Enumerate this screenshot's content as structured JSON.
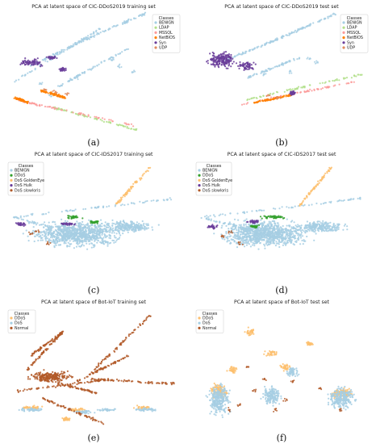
{
  "colors": {
    "light_blue": "#a6cee3",
    "light_green": "#b2df8a",
    "pink": "#fb9a99",
    "orange": "#fdbf6f",
    "dark_orange": "#ff7f00",
    "green": "#33a02c",
    "purple": "#6a3d9a",
    "peach": "#fdbf6f",
    "brown": "#b15928"
  },
  "chart_data": [
    {
      "type": "scatter",
      "label": "(a)",
      "title": "PCA at latent space of CIC-DDoS2019 training set",
      "legend": {
        "title": "Classes",
        "placement": "top-right",
        "entries": [
          {
            "name": "BENIGN",
            "color": "#a6cee3"
          },
          {
            "name": "LDAP",
            "color": "#b2df8a"
          },
          {
            "name": "MSSQL",
            "color": "#fb9a99"
          },
          {
            "name": "NetBIOS",
            "color": "#ff7f00"
          },
          {
            "name": "Syn",
            "color": "#6a3d9a"
          },
          {
            "name": "UDP",
            "color": "#e08a5e"
          }
        ]
      },
      "xlim": [
        0,
        100
      ],
      "ylim": [
        0,
        100
      ],
      "grid": false,
      "series": [
        {
          "name": "BENIGN",
          "color": "#a6cee3",
          "segments": [
            [
              [
                14,
                55
              ],
              [
                46,
                78
              ]
            ],
            [
              [
                46,
                78
              ],
              [
                80,
                100
              ]
            ],
            [
              [
                5,
                42
              ],
              [
                55,
                88
              ]
            ],
            [
              [
                30,
                38
              ],
              [
                70,
                70
              ]
            ]
          ],
          "scatter": [
            [
              60,
              60
            ],
            [
              65,
              55
            ],
            [
              72,
              50
            ],
            [
              20,
              40
            ],
            [
              25,
              30
            ],
            [
              40,
              45
            ]
          ]
        },
        {
          "name": "LDAP",
          "color": "#b2df8a",
          "segments": [
            [
              [
                26,
                20
              ],
              [
                76,
                0
              ]
            ]
          ]
        },
        {
          "name": "MSSQL",
          "color": "#fb9a99",
          "segments": [
            [
              [
                6,
                26
              ],
              [
                74,
                4
              ]
            ]
          ]
        },
        {
          "name": "NetBIOS",
          "color": "#ff7f00",
          "segments": [
            [
              [
                5,
                28
              ],
              [
                12,
                24
              ]
            ],
            [
              [
                20,
                34
              ],
              [
                34,
                28
              ]
            ]
          ]
        },
        {
          "name": "Syn",
          "color": "#6a3d9a",
          "blobs": [
            [
              14,
              58,
              9,
              4
            ],
            [
              26,
              62,
              4,
              2
            ],
            [
              32,
              52,
              3,
              2
            ]
          ]
        },
        {
          "name": "UDP",
          "color": "#e08a5e",
          "scatter": [
            [
              22,
              35
            ],
            [
              28,
              33
            ],
            [
              35,
              31
            ]
          ]
        }
      ]
    },
    {
      "type": "scatter",
      "label": "(b)",
      "title": "PCA at latent space of CIC-DDoS2019 test set",
      "legend": {
        "title": "Classes",
        "placement": "top-right",
        "entries": [
          {
            "name": "BENIGN",
            "color": "#a6cee3"
          },
          {
            "name": "LDAP",
            "color": "#b2df8a"
          },
          {
            "name": "MSSQL",
            "color": "#fb9a99"
          },
          {
            "name": "NetBIOS",
            "color": "#ff7f00"
          },
          {
            "name": "Syn",
            "color": "#6a3d9a"
          },
          {
            "name": "UDP",
            "color": "#e08a5e"
          }
        ]
      },
      "xlim": [
        0,
        100
      ],
      "ylim": [
        0,
        100
      ],
      "grid": false,
      "series": [
        {
          "name": "BENIGN",
          "color": "#a6cee3",
          "segments": [
            [
              [
                18,
                60
              ],
              [
                48,
                78
              ]
            ],
            [
              [
                48,
                78
              ],
              [
                82,
                100
              ]
            ],
            [
              [
                30,
                45
              ],
              [
                60,
                62
              ]
            ]
          ],
          "scatter": [
            [
              66,
              62
            ],
            [
              70,
              58
            ],
            [
              55,
              50
            ],
            [
              40,
              48
            ]
          ]
        },
        {
          "name": "LDAP",
          "color": "#b2df8a",
          "segments": [
            [
              [
                28,
                26
              ],
              [
                96,
                48
              ]
            ]
          ]
        },
        {
          "name": "MSSQL",
          "color": "#fb9a99",
          "segments": [
            [
              [
                26,
                22
              ],
              [
                92,
                42
              ]
            ]
          ]
        },
        {
          "name": "NetBIOS",
          "color": "#ff7f00",
          "segments": [
            [
              [
                34,
                24
              ],
              [
                55,
                30
              ]
            ]
          ]
        },
        {
          "name": "Syn",
          "color": "#6a3d9a",
          "blobs": [
            [
              16,
              60,
              10,
              9
            ],
            [
              30,
              55,
              6,
              5
            ],
            [
              56,
              32,
              3,
              3
            ]
          ]
        },
        {
          "name": "UDP",
          "color": "#e08a5e",
          "scatter": [
            [
              42,
              30
            ],
            [
              48,
              28
            ]
          ]
        }
      ]
    },
    {
      "type": "scatter",
      "label": "(c)",
      "title": "PCA at latent space of CIC-IDS2017 training set",
      "legend": {
        "title": "Classes",
        "placement": "top-left",
        "entries": [
          {
            "name": "BENIGN",
            "color": "#a6cee3"
          },
          {
            "name": "DDoS",
            "color": "#33a02c"
          },
          {
            "name": "DoS GoldenEye",
            "color": "#fdbf6f"
          },
          {
            "name": "DoS Hulk",
            "color": "#6a3d9a"
          },
          {
            "name": "DoS slowloris",
            "color": "#b15928"
          }
        ]
      },
      "xlim": [
        0,
        100
      ],
      "ylim": [
        0,
        100
      ],
      "grid": false,
      "series": [
        {
          "name": "BENIGN",
          "color": "#a6cee3",
          "blobs": [
            [
              40,
              38,
              32,
              14
            ],
            [
              70,
              44,
              18,
              6
            ]
          ],
          "segments": [
            [
              [
                4,
                52
              ],
              [
                96,
                68
              ]
            ],
            [
              [
                4,
                52
              ],
              [
                60,
                30
              ]
            ]
          ]
        },
        {
          "name": "DDoS",
          "color": "#33a02c",
          "blobs": [
            [
              38,
              52,
              6,
              2
            ],
            [
              50,
              48,
              4,
              2
            ]
          ]
        },
        {
          "name": "DoS GoldenEye",
          "color": "#fdbf6f",
          "segments": [
            [
              [
                62,
                62
              ],
              [
                82,
                94
              ]
            ]
          ]
        },
        {
          "name": "DoS Hulk",
          "color": "#6a3d9a",
          "blobs": [
            [
              36,
              46,
              6,
              2
            ],
            [
              8,
              46,
              4,
              2
            ]
          ]
        },
        {
          "name": "DoS slowloris",
          "color": "#b15928",
          "scatter": [
            [
              14,
              38
            ],
            [
              18,
              40
            ],
            [
              24,
              30
            ]
          ]
        }
      ]
    },
    {
      "type": "scatter",
      "label": "(d)",
      "title": "PCA at latent space of CIC-IDS2017 test set",
      "legend": {
        "title": "Classes",
        "placement": "top-left",
        "entries": [
          {
            "name": "BENIGN",
            "color": "#a6cee3"
          },
          {
            "name": "DDoS",
            "color": "#33a02c"
          },
          {
            "name": "DoS GoldenEye",
            "color": "#fdbf6f"
          },
          {
            "name": "DoS Hulk",
            "color": "#6a3d9a"
          },
          {
            "name": "DoS slowloris",
            "color": "#b15928"
          }
        ]
      },
      "xlim": [
        0,
        100
      ],
      "ylim": [
        0,
        100
      ],
      "grid": false,
      "series": [
        {
          "name": "BENIGN",
          "color": "#a6cee3",
          "blobs": [
            [
              40,
              38,
              32,
              14
            ],
            [
              72,
              44,
              18,
              6
            ]
          ],
          "segments": [
            [
              [
                4,
                52
              ],
              [
                96,
                68
              ]
            ],
            [
              [
                4,
                52
              ],
              [
                60,
                30
              ]
            ]
          ]
        },
        {
          "name": "DDoS",
          "color": "#33a02c",
          "blobs": [
            [
              46,
              52,
              10,
              2
            ],
            [
              34,
              44,
              4,
              2
            ]
          ]
        },
        {
          "name": "DoS GoldenEye",
          "color": "#fdbf6f",
          "segments": [
            [
              [
                60,
                62
              ],
              [
                78,
                94
              ]
            ]
          ]
        },
        {
          "name": "DoS Hulk",
          "color": "#6a3d9a",
          "blobs": [
            [
              34,
              48,
              6,
              2
            ],
            [
              10,
              44,
              4,
              2
            ]
          ]
        },
        {
          "name": "DoS slowloris",
          "color": "#b15928",
          "scatter": [
            [
              16,
              36
            ],
            [
              20,
              40
            ],
            [
              26,
              30
            ]
          ]
        }
      ]
    },
    {
      "type": "scatter",
      "label": "(e)",
      "title": "PCA at latent space of Bot-IoT training set",
      "legend": {
        "title": "Classes",
        "placement": "top-left",
        "entries": [
          {
            "name": "DDoS",
            "color": "#fdbf6f"
          },
          {
            "name": "DoS",
            "color": "#a6cee3"
          },
          {
            "name": "Normal",
            "color": "#b15928"
          }
        ]
      },
      "xlim": [
        0,
        100
      ],
      "ylim": [
        0,
        100
      ],
      "grid": false,
      "series": [
        {
          "name": "DDoS",
          "color": "#fdbf6f",
          "blobs": [
            [
              14,
              16,
              9,
              2
            ],
            [
              40,
              14,
              6,
              2
            ],
            [
              34,
              6,
              4,
              2
            ],
            [
              78,
              16,
              6,
              2
            ]
          ]
        },
        {
          "name": "DoS",
          "color": "#a6cee3",
          "blobs": [
            [
              14,
              14,
              10,
              2
            ],
            [
              44,
              12,
              8,
              2
            ],
            [
              80,
              14,
              10,
              2
            ],
            [
              58,
              14,
              8,
              1.5
            ]
          ]
        },
        {
          "name": "Normal",
          "color": "#b15928",
          "blobs": [
            [
              26,
              42,
              16,
              6
            ]
          ],
          "segments": [
            [
              [
                14,
                60
              ],
              [
                32,
                80
              ]
            ],
            [
              [
                32,
                80
              ],
              [
                12,
                48
              ]
            ],
            [
              [
                20,
                40
              ],
              [
                52,
                28
              ]
            ],
            [
              [
                40,
                38
              ],
              [
                70,
                60
              ]
            ],
            [
              [
                50,
                48
              ],
              [
                82,
                94
              ]
            ],
            [
              [
                6,
                30
              ],
              [
                60,
                40
              ]
            ],
            [
              [
                20,
                24
              ],
              [
                56,
                2
              ]
            ],
            [
              [
                48,
                40
              ],
              [
                96,
                36
              ]
            ]
          ]
        }
      ]
    },
    {
      "type": "scatter",
      "label": "(f)",
      "title": "PCA at latent space of Bot-IoT test set",
      "legend": {
        "title": "Classes",
        "placement": "top-left",
        "entries": [
          {
            "name": "DDoS",
            "color": "#fdbf6f"
          },
          {
            "name": "DoS",
            "color": "#a6cee3"
          },
          {
            "name": "Normal",
            "color": "#b15928"
          }
        ]
      },
      "xlim": [
        0,
        100
      ],
      "ylim": [
        0,
        100
      ],
      "grid": false,
      "series": [
        {
          "name": "DDoS",
          "color": "#fdbf6f",
          "blobs": [
            [
              32,
              80,
              4,
              4
            ],
            [
              44,
              62,
              5,
              3
            ],
            [
              66,
              70,
              3,
              2
            ],
            [
              22,
              48,
              4,
              4
            ],
            [
              52,
              50,
              4,
              4
            ],
            [
              14,
              30,
              6,
              8
            ],
            [
              84,
              28,
              8,
              6
            ]
          ]
        },
        {
          "name": "DoS",
          "color": "#a6cee3",
          "blobs": [
            [
              14,
              22,
              8,
              16
            ],
            [
              44,
              26,
              7,
              10
            ],
            [
              84,
              24,
              10,
              12
            ],
            [
              56,
              46,
              5,
              5
            ]
          ]
        },
        {
          "name": "Normal",
          "color": "#b15928",
          "scatter": [
            [
              20,
              14
            ],
            [
              26,
              18
            ],
            [
              34,
              30
            ],
            [
              46,
              14
            ],
            [
              52,
              22
            ],
            [
              72,
              32
            ],
            [
              84,
              14
            ],
            [
              56,
              38
            ],
            [
              40,
              40
            ],
            [
              30,
              50
            ]
          ]
        }
      ]
    }
  ]
}
